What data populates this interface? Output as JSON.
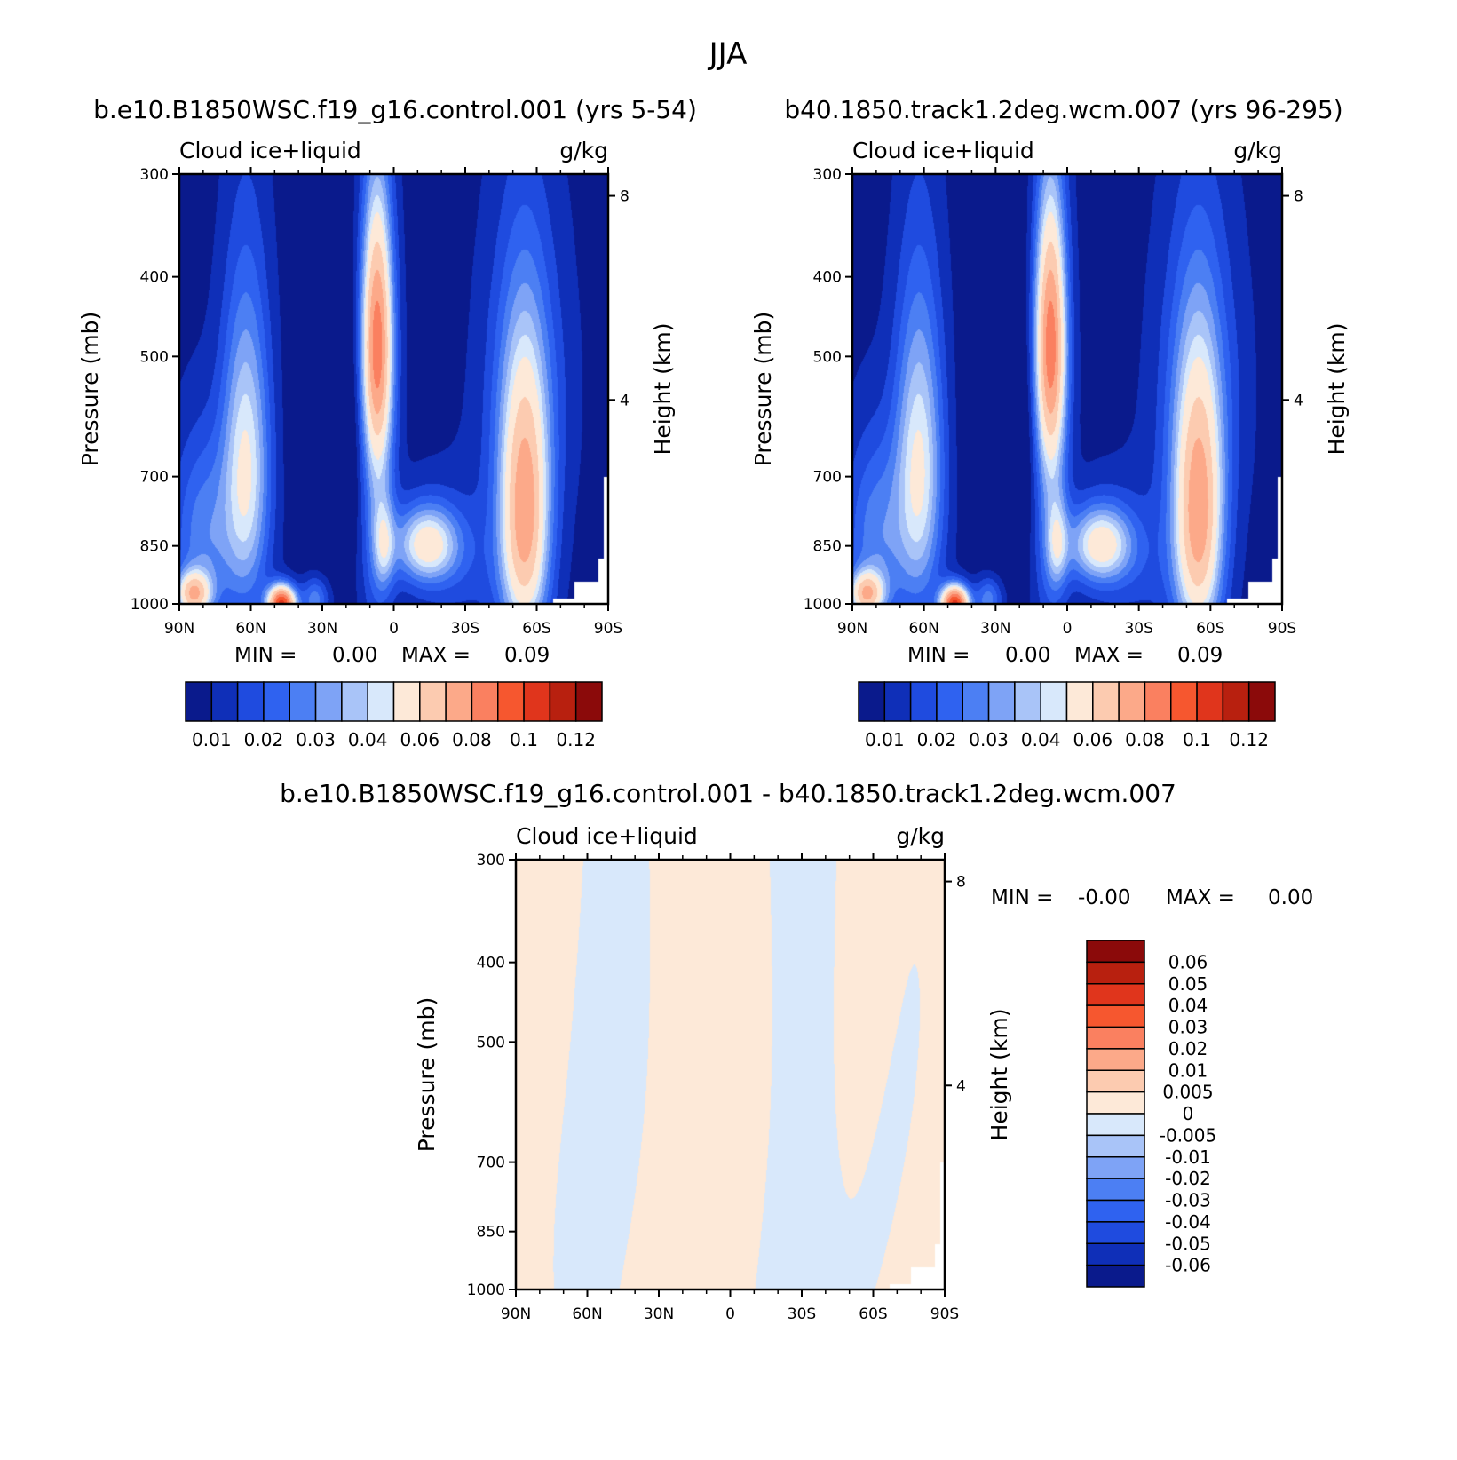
{
  "page_title": "JJA",
  "colors": {
    "contours_abs": [
      "#0a1a8c",
      "#0f2fb8",
      "#1f4bdf",
      "#2f62f0",
      "#4c7ff3",
      "#7ea3f6",
      "#a9c4f8",
      "#d8e8fb",
      "#fde9d8",
      "#fccbb0",
      "#fca989",
      "#fa8060",
      "#f6572f",
      "#e0351c",
      "#b8200f",
      "#8b0a0a"
    ],
    "contours_diff": [
      "#0a1a8c",
      "#0f2fb8",
      "#1f4bdf",
      "#2f62f0",
      "#4c7ff3",
      "#7ea3f6",
      "#a9c4f8",
      "#d8e8fb",
      "#fde9d8",
      "#fccbb0",
      "#fca989",
      "#fa8060",
      "#f6572f",
      "#e0351c",
      "#b8200f",
      "#8b0a0a"
    ]
  },
  "chart_data": [
    {
      "type": "heatmap",
      "panel_id": "panel-control",
      "title": "b.e10.B1850WSC.f19_g16.control.001 (yrs 5-54)",
      "left_label": "Cloud ice+liquid",
      "right_label": "g/kg",
      "ylabel": "Pressure (mb)",
      "y2label": "Height (km)",
      "x_ticks": [
        "90N",
        "60N",
        "30N",
        "0",
        "30S",
        "60S",
        "90S"
      ],
      "y_ticks": [
        "300",
        "400",
        "500",
        "700",
        "850",
        "1000"
      ],
      "y2_ticks": [
        "8",
        "4"
      ],
      "min_text": "MIN =",
      "min_value": "0.00",
      "max_text": "MAX =",
      "max_value": "0.09",
      "colorbar_labels": [
        "0.01",
        "0.02",
        "0.03",
        "0.04",
        "0.06",
        "0.08",
        "0.1",
        "0.12"
      ],
      "xlim": [
        90,
        -90
      ],
      "ylim": [
        1000,
        300
      ]
    },
    {
      "type": "heatmap",
      "panel_id": "panel-wcm",
      "title": "b40.1850.track1.2deg.wcm.007 (yrs 96-295)",
      "left_label": "Cloud ice+liquid",
      "right_label": "g/kg",
      "ylabel": "Pressure (mb)",
      "y2label": "Height (km)",
      "x_ticks": [
        "90N",
        "60N",
        "30N",
        "0",
        "30S",
        "60S",
        "90S"
      ],
      "y_ticks": [
        "300",
        "400",
        "500",
        "700",
        "850",
        "1000"
      ],
      "y2_ticks": [
        "8",
        "4"
      ],
      "min_text": "MIN =",
      "min_value": "0.00",
      "max_text": "MAX =",
      "max_value": "0.09",
      "colorbar_labels": [
        "0.01",
        "0.02",
        "0.03",
        "0.04",
        "0.06",
        "0.08",
        "0.1",
        "0.12"
      ],
      "xlim": [
        90,
        -90
      ],
      "ylim": [
        1000,
        300
      ]
    },
    {
      "type": "heatmap",
      "panel_id": "panel-diff",
      "title": "b.e10.B1850WSC.f19_g16.control.001 - b40.1850.track1.2deg.wcm.007",
      "left_label": "Cloud ice+liquid",
      "right_label": "g/kg",
      "ylabel": "Pressure (mb)",
      "y2label": "Height (km)",
      "x_ticks": [
        "90N",
        "60N",
        "30N",
        "0",
        "30S",
        "60S",
        "90S"
      ],
      "y_ticks": [
        "300",
        "400",
        "500",
        "700",
        "850",
        "1000"
      ],
      "y2_ticks": [
        "8",
        "4"
      ],
      "min_text": "MIN =",
      "min_value": "-0.00",
      "max_text": "MAX =",
      "max_value": "0.00",
      "colorbar_labels": [
        "0.06",
        "0.05",
        "0.04",
        "0.03",
        "0.02",
        "0.01",
        "0.005",
        "0",
        "-0.005",
        "-0.01",
        "-0.02",
        "-0.03",
        "-0.04",
        "-0.05",
        "-0.06"
      ],
      "xlim": [
        90,
        -90
      ],
      "ylim": [
        1000,
        300
      ]
    }
  ]
}
